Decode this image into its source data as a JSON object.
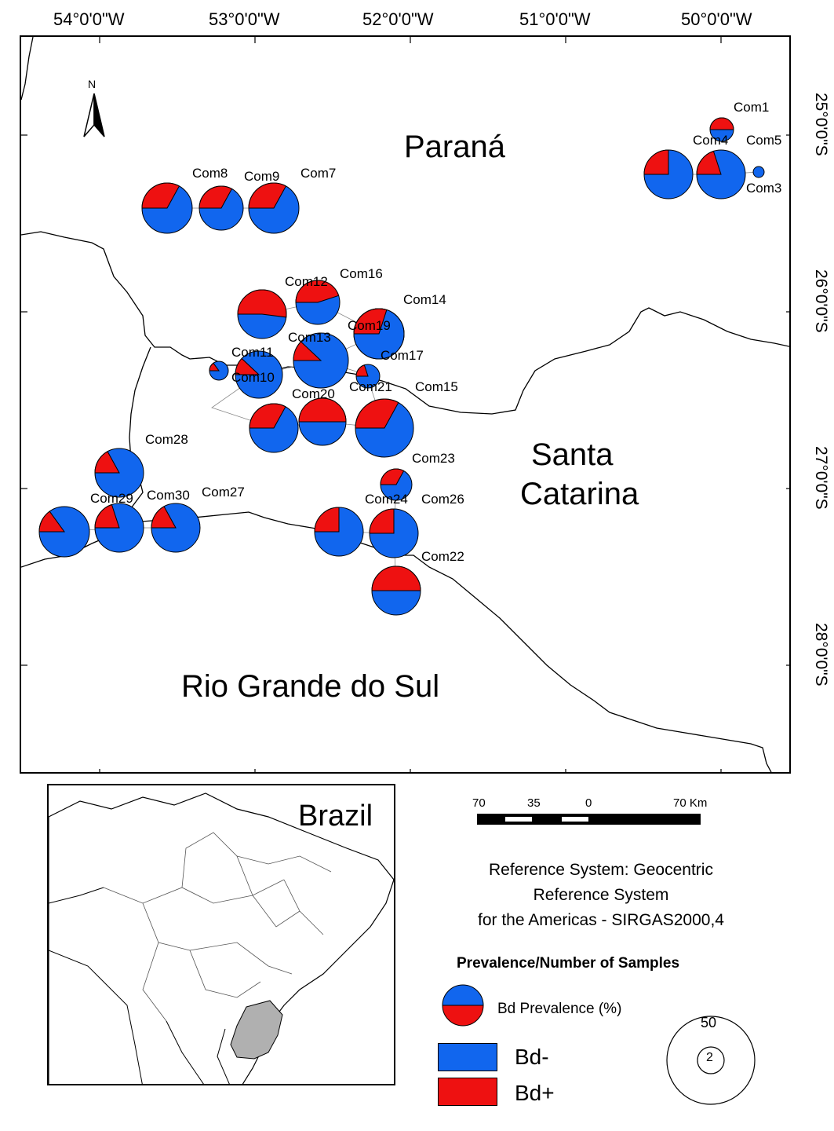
{
  "map": {
    "longitude_labels": [
      "54°0'0\"W",
      "53°0'0\"W",
      "52°0'0\"W",
      "51°0'0\"W",
      "50°0'0\"W"
    ],
    "latitude_labels": [
      "25°0'0\"S",
      "26°0'0\"S",
      "27°0'0\"S",
      "28°0'0\"S"
    ],
    "north_arrow": "N",
    "states": {
      "parana": "Paraná",
      "santa_catarina_1": "Santa",
      "santa_catarina_2": "Catarina",
      "rio_grande_do_sul": "Rio Grande do Sul"
    },
    "colors": {
      "bd_negative": "#1166ee",
      "bd_positive": "#ee1111"
    },
    "communities": [
      {
        "label": "Com1",
        "bd_positive_pct": 50
      },
      {
        "label": "Com3",
        "bd_positive_pct": 0
      },
      {
        "label": "Com4",
        "bd_positive_pct": 25
      },
      {
        "label": "Com5",
        "bd_positive_pct": 20
      },
      {
        "label": "Com7",
        "bd_positive_pct": 33
      },
      {
        "label": "Com8",
        "bd_positive_pct": 33
      },
      {
        "label": "Com9",
        "bd_positive_pct": 33
      },
      {
        "label": "Com10",
        "bd_positive_pct": 12
      },
      {
        "label": "Com11",
        "bd_positive_pct": 15
      },
      {
        "label": "Com12",
        "bd_positive_pct": 52
      },
      {
        "label": "Com13",
        "bd_positive_pct": 12
      },
      {
        "label": "Com14",
        "bd_positive_pct": 65
      },
      {
        "label": "Com15",
        "bd_positive_pct": 33
      },
      {
        "label": "Com16",
        "bd_positive_pct": 45
      },
      {
        "label": "Com17",
        "bd_positive_pct": 20
      },
      {
        "label": "Com19",
        "bd_positive_pct": 30
      },
      {
        "label": "Com20",
        "bd_positive_pct": 50
      },
      {
        "label": "Com21",
        "bd_positive_pct": 33
      },
      {
        "label": "Com22",
        "bd_positive_pct": 50
      },
      {
        "label": "Com23",
        "bd_positive_pct": 33
      },
      {
        "label": "Com24",
        "bd_positive_pct": 25
      },
      {
        "label": "Com26",
        "bd_positive_pct": 25
      },
      {
        "label": "Com27",
        "bd_positive_pct": 17
      },
      {
        "label": "Com28",
        "bd_positive_pct": 17
      },
      {
        "label": "Com29",
        "bd_positive_pct": 15
      },
      {
        "label": "Com30",
        "bd_positive_pct": 20
      }
    ]
  },
  "inset": {
    "title": "Brazil"
  },
  "scale_bar": {
    "labels": [
      "70",
      "35",
      "0",
      "70 Km"
    ]
  },
  "reference": {
    "line1": "Reference System: Geocentric",
    "line2": "Reference System",
    "line3": "for the Americas - SIRGAS2000,4"
  },
  "legend": {
    "title": "Prevalence/Number of Samples",
    "pie_label": "Bd Prevalence (%)",
    "bd_negative": "Bd-",
    "bd_positive": "Bd+",
    "size_large": "50",
    "size_small": "2"
  }
}
